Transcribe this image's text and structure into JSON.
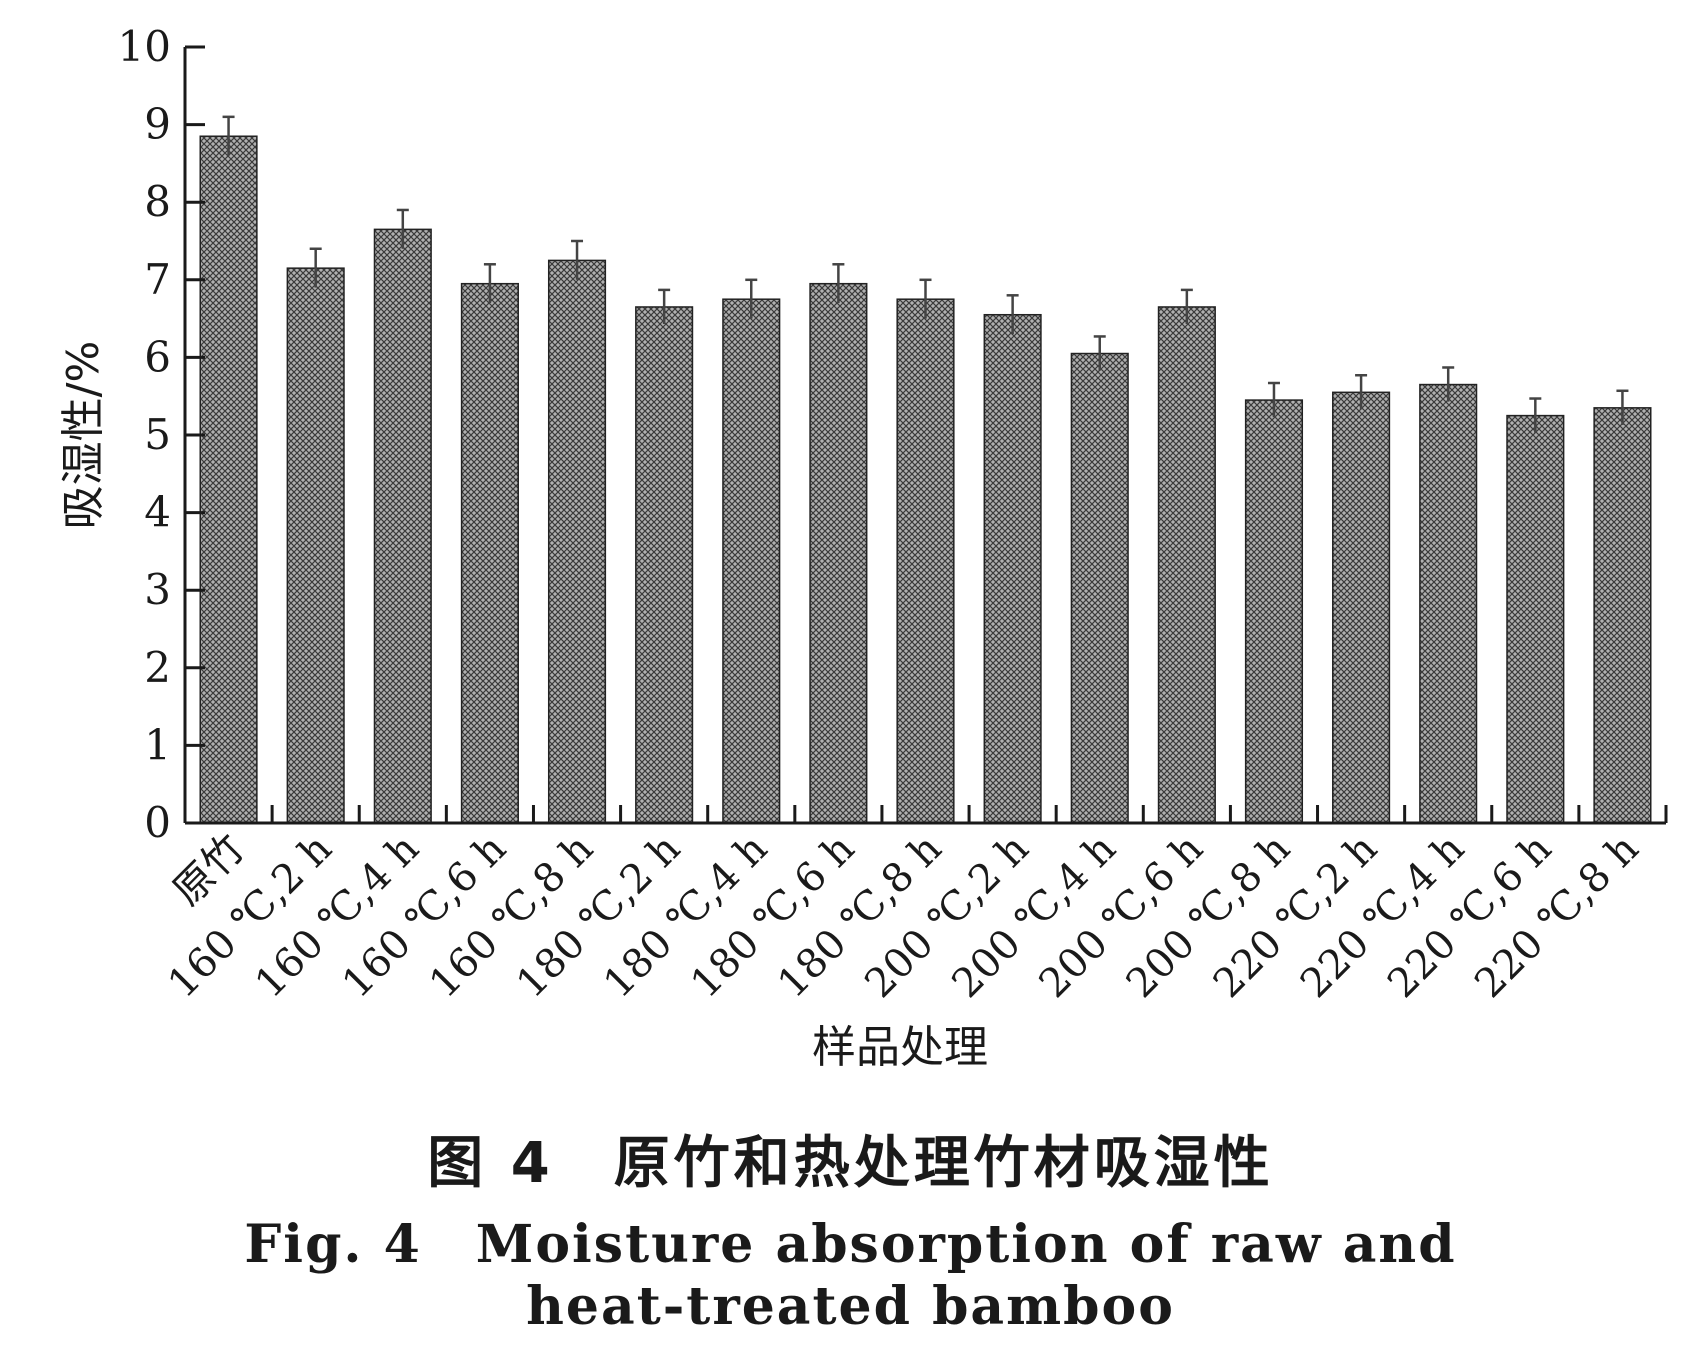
{
  "chart_data": {
    "type": "bar",
    "xlabel": "样品处理",
    "ylabel": "吸湿性/%",
    "ylim": [
      0,
      10
    ],
    "yticks": [
      "0",
      "1",
      "2",
      "3",
      "4",
      "5",
      "6",
      "7",
      "8",
      "9",
      "10"
    ],
    "grid": false,
    "categories": [
      "原竹",
      "160 ℃,2 h",
      "160 ℃,4 h",
      "160 ℃,6 h",
      "160 ℃,8 h",
      "180 ℃,2 h",
      "180 ℃,4 h",
      "180 ℃,6 h",
      "180 ℃,8 h",
      "200 ℃,2 h",
      "200 ℃,4 h",
      "200 ℃,6 h",
      "200 ℃,8 h",
      "220 ℃,2 h",
      "220 ℃,4 h",
      "220 ℃,6 h",
      "220 ℃,8 h"
    ],
    "values": [
      8.85,
      7.15,
      7.65,
      6.95,
      7.25,
      6.65,
      6.75,
      6.95,
      6.75,
      6.55,
      6.05,
      6.65,
      5.45,
      5.55,
      5.65,
      5.25,
      5.35
    ],
    "errors": [
      0.25,
      0.25,
      0.25,
      0.25,
      0.25,
      0.22,
      0.25,
      0.25,
      0.25,
      0.25,
      0.22,
      0.22,
      0.22,
      0.22,
      0.22,
      0.22,
      0.22
    ],
    "bar_color": "#8a8a8a"
  },
  "caption": {
    "cn": "图 4　原竹和热处理竹材吸湿性",
    "en_line1": "Fig. 4　Moisture absorption of raw and",
    "en_line2": "heat-treated bamboo"
  }
}
